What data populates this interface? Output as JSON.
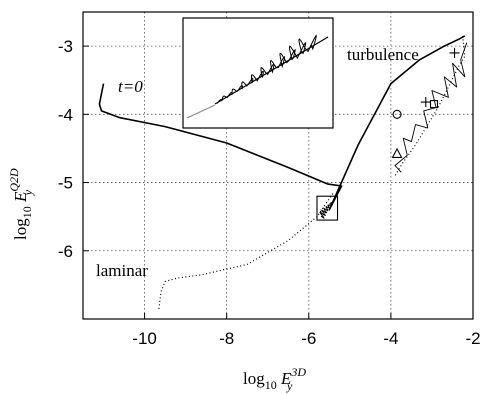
{
  "chart_data": {
    "type": "line",
    "xlabel": {
      "base": "log",
      "sub": "10",
      "var": "E",
      "var_sub": "y",
      "var_sup": "3D"
    },
    "ylabel": {
      "base": "log",
      "sub": "10",
      "var": "E",
      "var_sub": "y",
      "var_sup": "Q2D"
    },
    "xlim": [
      -11.5,
      -2
    ],
    "ylim": [
      -7.0,
      -2.5
    ],
    "xticks": [
      -10,
      -8,
      -6,
      -4,
      -2
    ],
    "yticks": [
      -6,
      -5,
      -4,
      -3
    ],
    "xtick_labels": [
      "-10",
      "-8",
      "-6",
      "-4",
      "-2"
    ],
    "ytick_labels": [
      "-6",
      "-5",
      "-4",
      "-3"
    ],
    "grid": true,
    "annotations": {
      "t0": "t=0",
      "turbulence": "turbulence",
      "laminar": "laminar"
    },
    "series": [
      {
        "style": "solid",
        "x": [
          -11.0,
          -11.1,
          -11.05,
          -10.6,
          -9.5,
          -8.0,
          -6.5,
          -5.55,
          -5.2,
          -5.5,
          -4.8,
          -4.0,
          -3.3,
          -2.7,
          -2.35,
          -2.2
        ],
        "y": [
          -3.55,
          -3.85,
          -3.95,
          -4.05,
          -4.18,
          -4.42,
          -4.78,
          -5.02,
          -5.05,
          -5.4,
          -4.45,
          -3.55,
          -3.2,
          -3.0,
          -2.9,
          -2.85
        ]
      },
      {
        "style": "dotted",
        "x": [
          -9.65,
          -9.6,
          -9.5,
          -9.2,
          -8.6,
          -7.5,
          -6.5,
          -5.8,
          -5.4
        ],
        "y": [
          -6.85,
          -6.6,
          -6.45,
          -6.4,
          -6.35,
          -6.2,
          -5.85,
          -5.5,
          -5.15
        ]
      },
      {
        "style": "dotted",
        "x": [
          -2.25,
          -2.2,
          -2.35,
          -2.6,
          -2.85,
          -3.1,
          -3.4,
          -3.7,
          -3.9
        ],
        "y": [
          -2.85,
          -3.15,
          -3.3,
          -3.6,
          -3.9,
          -4.15,
          -4.45,
          -4.7,
          -4.9
        ]
      },
      {
        "style": "thin",
        "x": [
          -2.15,
          -2.3,
          -2.2,
          -2.5,
          -2.4,
          -2.7,
          -2.6,
          -3.0,
          -2.9,
          -3.2,
          -3.1,
          -3.4,
          -3.5,
          -3.7,
          -3.6,
          -3.9,
          -3.75
        ],
        "y": [
          -2.95,
          -3.2,
          -3.45,
          -3.25,
          -3.6,
          -3.45,
          -3.75,
          -3.65,
          -3.9,
          -3.95,
          -4.2,
          -4.15,
          -4.4,
          -4.35,
          -4.6,
          -4.75,
          -4.85
        ]
      }
    ],
    "markers": [
      {
        "shape": "circle",
        "x": -3.85,
        "y": -4.0
      },
      {
        "shape": "plus",
        "x": -3.15,
        "y": -3.82
      },
      {
        "shape": "square",
        "x": -2.95,
        "y": -3.85
      },
      {
        "shape": "triangle",
        "x": -3.85,
        "y": -4.58
      },
      {
        "shape": "plus",
        "x": -2.45,
        "y": -3.1
      }
    ],
    "zoom_box": {
      "x": [
        -5.8,
        -5.3
      ],
      "y": [
        -5.55,
        -5.2
      ]
    },
    "inset": {
      "description_visible": false
    }
  }
}
